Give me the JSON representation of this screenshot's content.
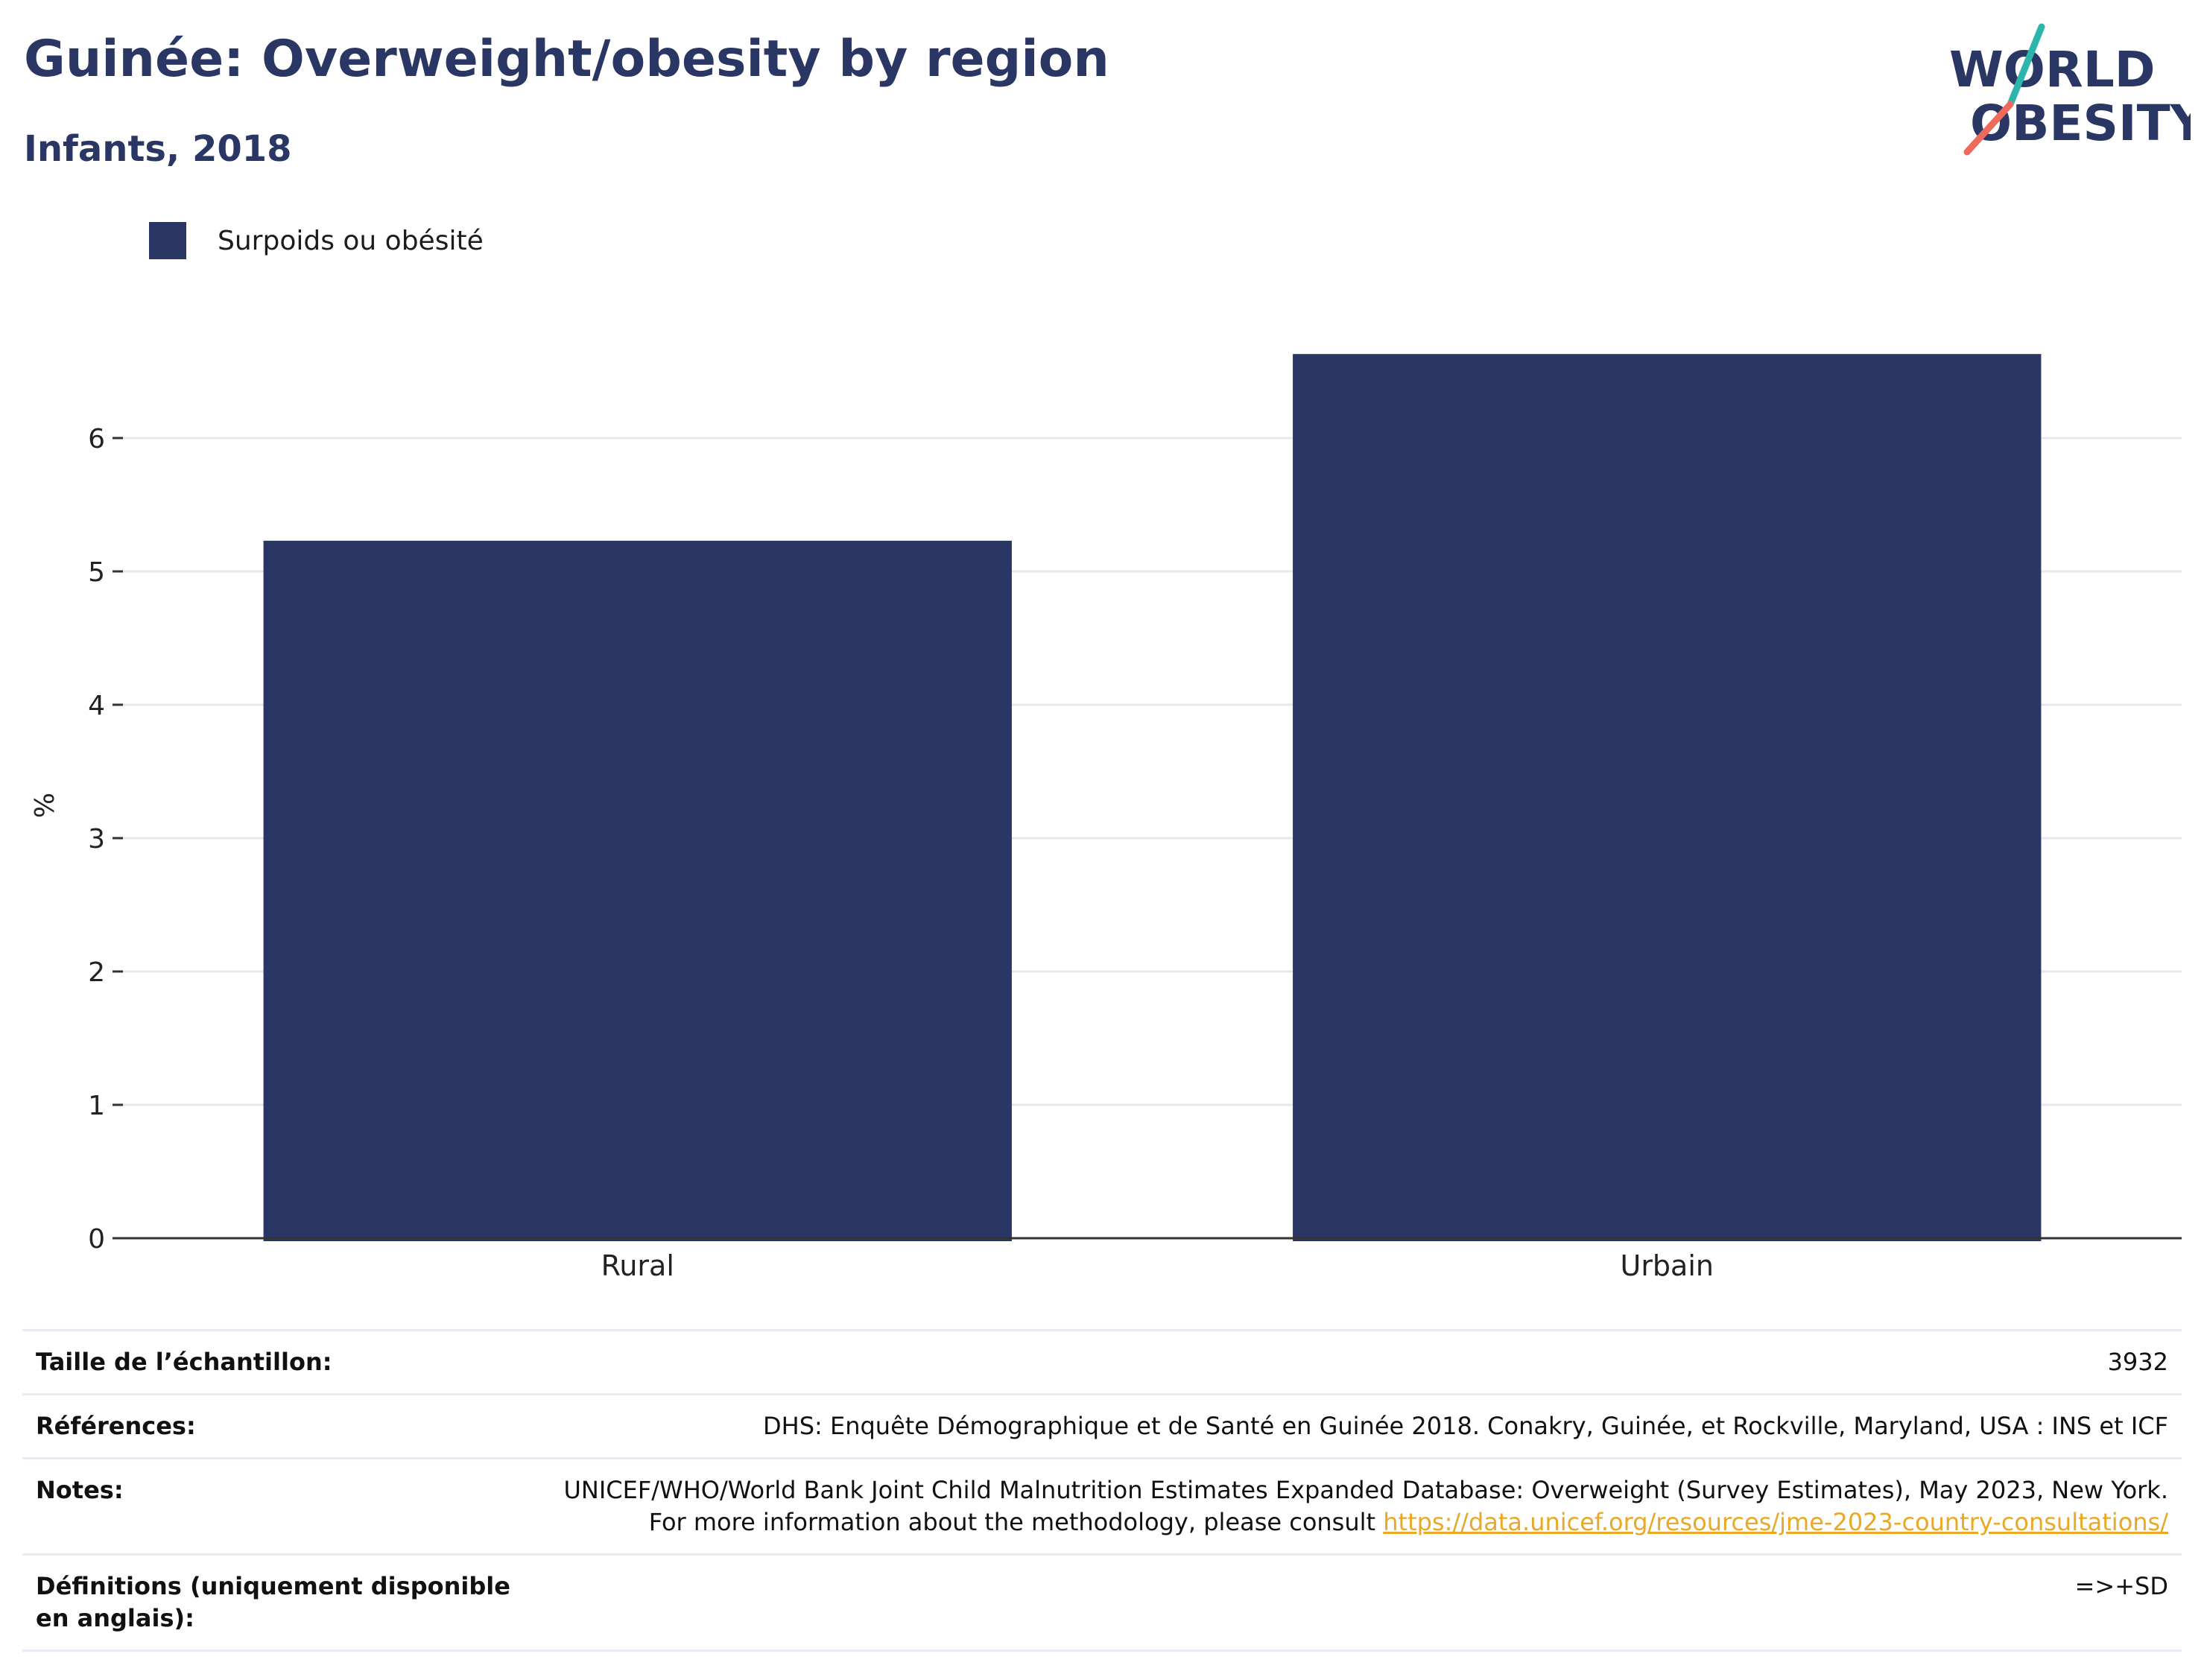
{
  "title": "Guinée: Overweight/obesity by region",
  "subtitle": "Infants, 2018",
  "logo": {
    "line1": "WORLD",
    "line2": "OBESITY"
  },
  "legend": {
    "label": "Surpoids ou obésité",
    "color": "#2a3663"
  },
  "chart_data": {
    "type": "bar",
    "categories": [
      "Rural",
      "Urbain"
    ],
    "series": [
      {
        "name": "Surpoids ou obésité",
        "values": [
          5.23,
          6.63
        ]
      }
    ],
    "ylabel": "%",
    "ylim": [
      0,
      7.05
    ],
    "yticks": [
      0,
      1,
      2,
      3,
      4,
      5,
      6
    ],
    "grid": true,
    "legend_position": "top-left",
    "bar_color": "#2a3663"
  },
  "info": {
    "sample_label": "Taille de l’échantillon:",
    "sample_value": "3932",
    "references_label": "Références:",
    "references_value": "DHS: Enquête Démographique et de Santé en Guinée 2018. Conakry, Guinée, et Rockville, Maryland, USA : INS et ICF",
    "notes_label": "Notes:",
    "notes_text": "UNICEF/WHO/World Bank Joint Child Malnutrition Estimates Expanded Database: Overweight (Survey Estimates), May 2023, New York. For more information about the methodology, please consult ",
    "notes_link": "https://data.unicef.org/resources/jme-2023-country-consultations/",
    "definitions_label": "Définitions (uniquement disponible en anglais):",
    "definitions_value": "=>+SD"
  }
}
